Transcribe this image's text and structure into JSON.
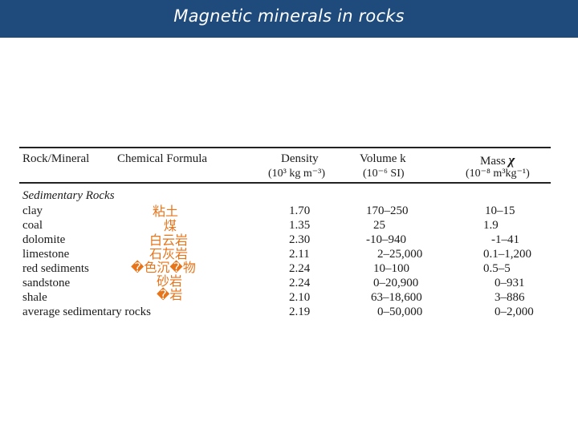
{
  "title": "Magnetic minerals in rocks",
  "table": {
    "headers": {
      "rock": "Rock/Mineral",
      "formula": "Chemical Formula",
      "density_name": "Density",
      "density_unit": "(10³ kg m⁻³)",
      "volume_name": "Volume k",
      "volume_unit": "(10⁻⁶ SI)",
      "mass_name": "Mass",
      "mass_symbol": "χ",
      "mass_unit": "(10⁻⁸ m³kg⁻¹)"
    },
    "section": "Sedimentary Rocks",
    "rows": [
      {
        "name": "clay",
        "density": "1.70",
        "volume": "170–250",
        "mass": "10–15"
      },
      {
        "name": "coal",
        "density": "1.35",
        "volume": "25",
        "mass": "1.9"
      },
      {
        "name": "dolomite",
        "density": "2.30",
        "volume": "-10–940",
        "mass": "-1–41"
      },
      {
        "name": "limestone",
        "density": "2.11",
        "volume": "2–25,000",
        "mass": "0.1–1,200"
      },
      {
        "name": "red sediments",
        "density": "2.24",
        "volume": "10–100",
        "mass": "0.5–5"
      },
      {
        "name": "sandstone",
        "density": "2.24",
        "volume": "0–20,900",
        "mass": "0–931"
      },
      {
        "name": "shale",
        "density": "2.10",
        "volume": "63–18,600",
        "mass": "3–886"
      },
      {
        "name": "average sedimentary rocks",
        "density": "2.19",
        "volume": "0–50,000",
        "mass": "0–2,000"
      }
    ]
  },
  "annotations": [
    "粘土",
    "煤",
    "白云岩",
    "石灰岩",
    "�色沉�物",
    "砂岩",
    "�岩"
  ],
  "colors": {
    "title_bar": "#1f4a7c",
    "annotation": "#e8741a"
  }
}
